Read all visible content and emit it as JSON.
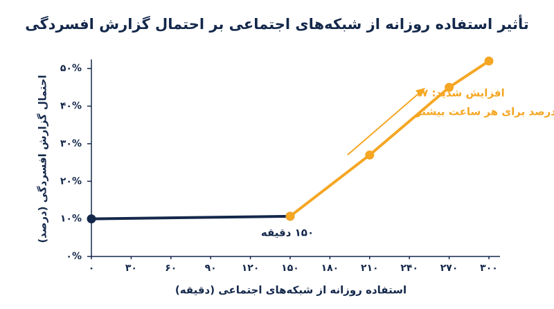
{
  "chart_data": {
    "type": "line",
    "title": "تأثیر استفاده روزانه از شبکه‌های اجتماعی بر احتمال گزارش افسردگی",
    "x_label": "استفاده روزانه از شبکه‌های اجتماعی (دقیقه)",
    "y_label": "احتمال گزارش افسردگی (درصد)",
    "annotations": [
      "افزایش شدید: ۱۷",
      "درصد برای هر ساعت بیشتر",
      "۱۵۰ دقیقه"
    ],
    "series": [
      {
        "color": "#14284b",
        "x": [
          0,
          150
        ],
        "values": [
          10,
          10.7
        ]
      },
      {
        "color": "#f5a623",
        "x": [
          150,
          210,
          270,
          300
        ],
        "values": [
          10.7,
          27,
          45,
          52
        ]
      }
    ],
    "xlim": [
      0,
      300
    ],
    "ylim": [
      0,
      55
    ],
    "xticks": [
      {
        "value": 0,
        "label": "۰"
      },
      {
        "value": 30,
        "label": "۳۰"
      },
      {
        "value": 60,
        "label": "۶۰"
      },
      {
        "value": 90,
        "label": "۹۰"
      },
      {
        "value": 120,
        "label": "۱۲۰"
      },
      {
        "value": 150,
        "label": "۱۵۰"
      },
      {
        "value": 180,
        "label": "۱۸۰"
      },
      {
        "value": 210,
        "label": "۲۱۰"
      },
      {
        "value": 240,
        "label": "۲۴۰"
      },
      {
        "value": 270,
        "label": "۲۷۰"
      },
      {
        "value": 300,
        "label": "۳۰۰"
      }
    ],
    "yticks": [
      {
        "value": 0,
        "label": "۰%"
      },
      {
        "value": 10,
        "label": "۱۰%"
      },
      {
        "value": 20,
        "label": "۲۰%"
      },
      {
        "value": 30,
        "label": "۳۰%"
      },
      {
        "value": 40,
        "label": "۴۰%"
      },
      {
        "value": 50,
        "label": "۵۰%"
      }
    ],
    "grid": false
  }
}
